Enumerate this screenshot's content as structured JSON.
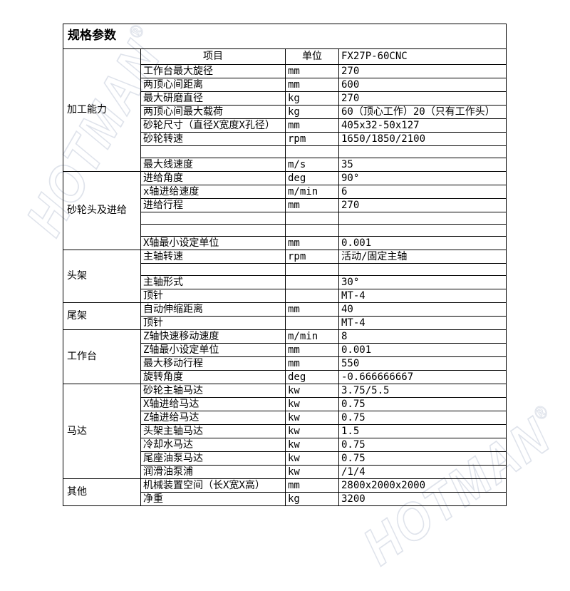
{
  "page": {
    "background": "#ffffff",
    "border_color": "#000000",
    "text_color": "#000000"
  },
  "watermark": {
    "text": "HOTMAN",
    "registered": "®",
    "stroke_color": "#dfe3eb"
  },
  "table": {
    "title": "规格参数",
    "headers": {
      "item": "项目",
      "unit": "单位",
      "model": "FX27P-60CNC"
    },
    "cat_rowspan": "9",
    "sections": [
      {
        "category": "加工能力",
        "rows": [
          {
            "item": "工作台最大旋径",
            "unit": "mm",
            "value": "270"
          },
          {
            "item": "两顶心间距离",
            "unit": "mm",
            "value": "600"
          },
          {
            "item": "最大研磨直径",
            "unit": "kg",
            "value": "270"
          },
          {
            "item": "两顶心间最大载荷",
            "unit": "kg",
            "value": "60（顶心工作）20（只有工作头）"
          },
          {
            "item": "砂轮尺寸（直径X宽度X孔径）",
            "unit": "mm",
            "value": "405x32-50x127"
          },
          {
            "item": "砂轮转速",
            "unit": "rpm",
            "value": "1650/1850/2100"
          },
          {
            "item": "",
            "unit": "",
            "value": "",
            "empty": true
          },
          {
            "item": "最大线速度",
            "unit": "m/s",
            "value": "35"
          }
        ]
      },
      {
        "category": "砂轮头及进给",
        "rows": [
          {
            "item": "进给角度",
            "unit": "deg",
            "value": "90°"
          },
          {
            "item": "x轴进给速度",
            "unit": "m/min",
            "value": "6"
          },
          {
            "item": "进给行程",
            "unit": "mm",
            "value": "270"
          },
          {
            "item": "",
            "unit": "",
            "value": "",
            "empty": true
          },
          {
            "item": "",
            "unit": "",
            "value": "",
            "empty": true
          },
          {
            "item": "X轴最小设定单位",
            "unit": "mm",
            "value": "0.001"
          }
        ]
      },
      {
        "category": "头架",
        "rows": [
          {
            "item": "主轴转速",
            "unit": "rpm",
            "value": "活动/固定主轴"
          },
          {
            "item": "",
            "unit": "",
            "value": "",
            "empty": true
          },
          {
            "item": "主轴形式",
            "unit": "",
            "value": "30°"
          },
          {
            "item": "顶针",
            "unit": "",
            "value": "MT-4"
          }
        ]
      },
      {
        "category": "尾架",
        "rows": [
          {
            "item": "自动伸缩距离",
            "unit": "mm",
            "value": "40"
          },
          {
            "item": "顶针",
            "unit": "",
            "value": "MT-4"
          }
        ]
      },
      {
        "category": "工作台",
        "rows": [
          {
            "item": "Z轴快速移动速度",
            "unit": "m/min",
            "value": "8"
          },
          {
            "item": "Z轴最小设定单位",
            "unit": "mm",
            "value": "0.001"
          },
          {
            "item": "最大移动行程",
            "unit": "mm",
            "value": "550"
          },
          {
            "item": "旋转角度",
            "unit": "deg",
            "value": "-0.666666667"
          }
        ]
      },
      {
        "category": "马达",
        "rows": [
          {
            "item": "砂轮主轴马达",
            "unit": "kw",
            "value": "3.75/5.5"
          },
          {
            "item": "X轴进给马达",
            "unit": "kw",
            "value": "0.75"
          },
          {
            "item": "Z轴进给马达",
            "unit": "kw",
            "value": "0.75"
          },
          {
            "item": "头架主轴马达",
            "unit": "kw",
            "value": "1.5"
          },
          {
            "item": "冷却水马达",
            "unit": "kw",
            "value": "0.75"
          },
          {
            "item": "尾座油泵马达",
            "unit": "kw",
            "value": "0.75"
          },
          {
            "item": "润滑油泵浦",
            "unit": "kw",
            "value": "/1/4"
          }
        ]
      },
      {
        "category": "其他",
        "rows": [
          {
            "item": "机械装置空间（长X宽X高）",
            "unit": "mm",
            "value": "2800x2000x2000"
          },
          {
            "item": "净重",
            "unit": "kg",
            "value": "3200"
          }
        ]
      }
    ]
  }
}
